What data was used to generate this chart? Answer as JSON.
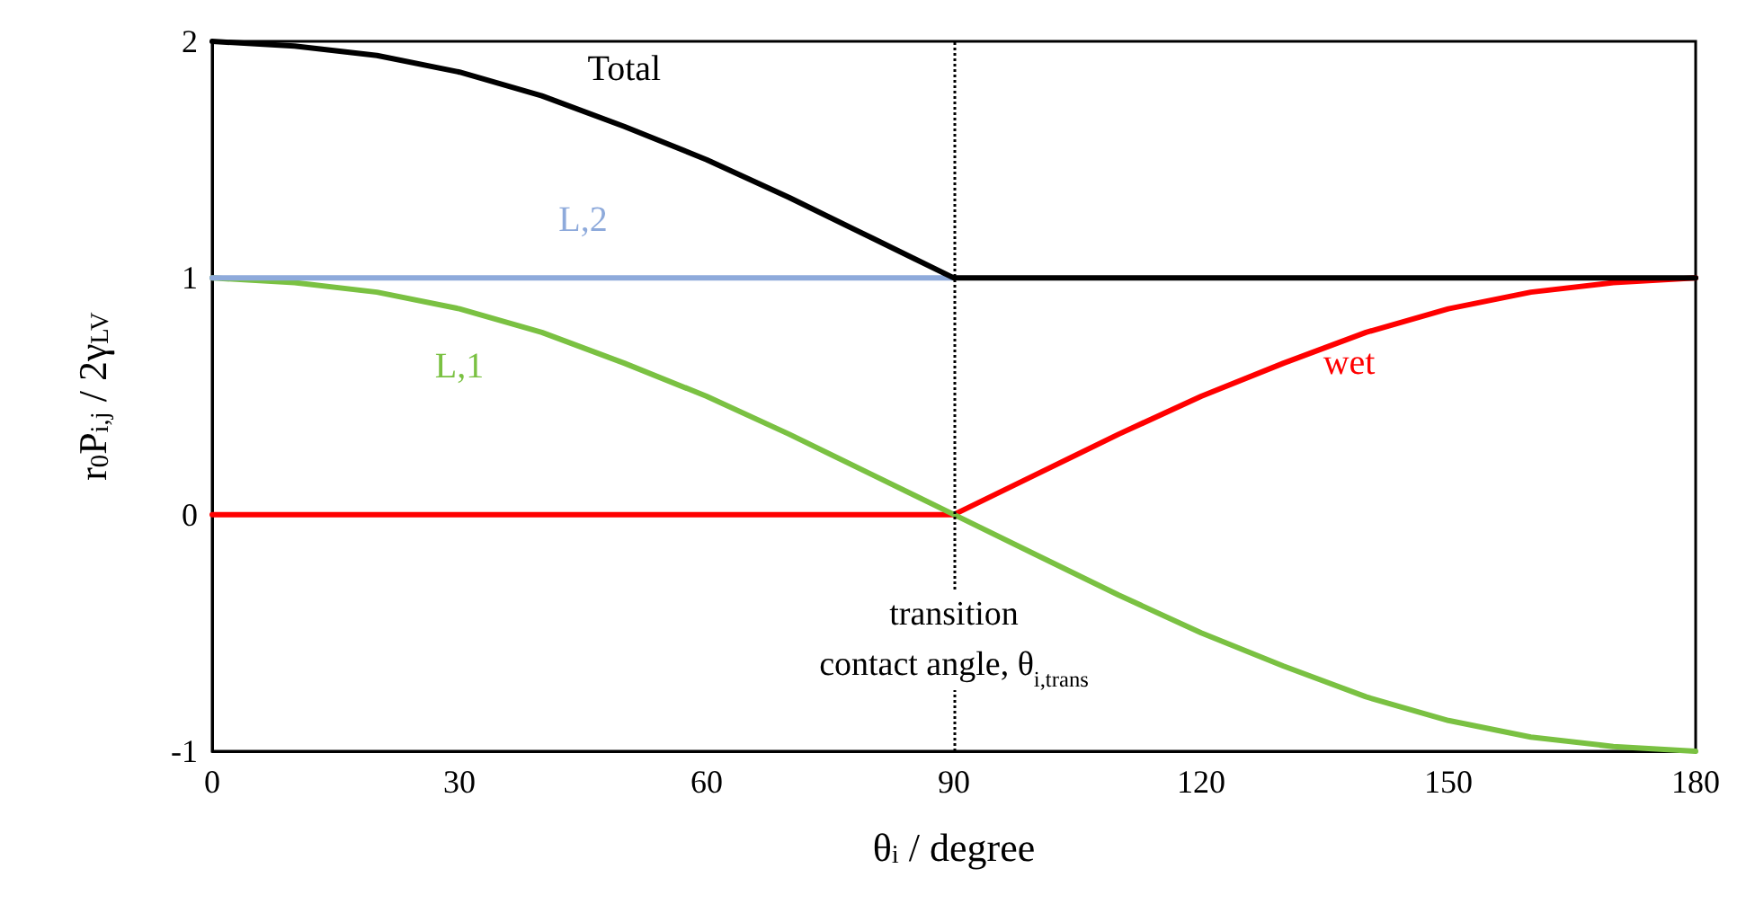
{
  "chart_data": {
    "type": "line",
    "xlabel": "θ$_{i}$ / degree",
    "ylabel": "r$_{0}$P$_{i,j}$ / 2γ$_{LV}$",
    "xlim": [
      0,
      180
    ],
    "xticks": [
      0,
      30,
      60,
      90,
      120,
      150,
      180
    ],
    "ylim": [
      -1,
      2
    ],
    "yticks": [
      -1,
      0,
      1,
      2
    ],
    "grid": false,
    "legend": false,
    "marker": "none",
    "line_style": "solid",
    "series": [
      {
        "name": "Total",
        "color": "#000000",
        "x": [
          0,
          10,
          20,
          30,
          40,
          50,
          60,
          70,
          80,
          90,
          100,
          120,
          150,
          180
        ],
        "values": [
          2,
          1.98,
          1.94,
          1.87,
          1.77,
          1.64,
          1.5,
          1.34,
          1.17,
          1,
          1,
          1,
          1,
          1
        ]
      },
      {
        "name": "L,2",
        "color": "#8eaadb",
        "x": [
          0,
          45,
          90
        ],
        "values": [
          1,
          1,
          1
        ]
      },
      {
        "name": "L,1",
        "color": "#7ac142",
        "x": [
          0,
          10,
          20,
          30,
          40,
          50,
          60,
          70,
          80,
          90,
          100,
          110,
          120,
          130,
          140,
          150,
          160,
          170,
          180
        ],
        "values": [
          1,
          0.98,
          0.94,
          0.87,
          0.77,
          0.64,
          0.5,
          0.34,
          0.17,
          0,
          -0.17,
          -0.34,
          -0.5,
          -0.64,
          -0.77,
          -0.87,
          -0.94,
          -0.98,
          -1
        ]
      },
      {
        "name": "wet",
        "color": "#ff0000",
        "x": [
          0,
          45,
          90,
          100,
          110,
          120,
          130,
          140,
          150,
          160,
          170,
          180
        ],
        "values": [
          0,
          0,
          0,
          0.17,
          0.34,
          0.5,
          0.64,
          0.77,
          0.87,
          0.94,
          0.98,
          1
        ]
      }
    ],
    "ref_lines": [
      {
        "axis": "x",
        "value": 90,
        "label": "transition\ncontact angle, θ$_{i,trans}$",
        "color": "#000000",
        "line_style": "dotted"
      }
    ]
  }
}
